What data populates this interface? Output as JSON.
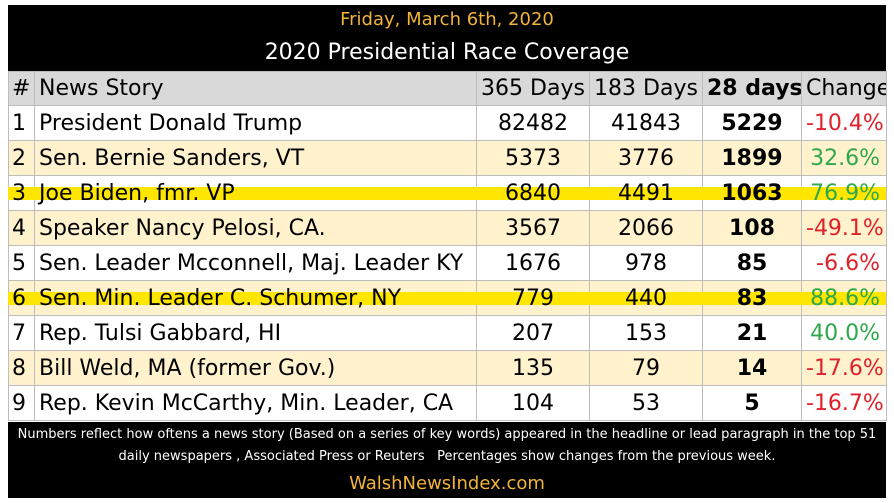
{
  "header": {
    "date": "Friday, March 6th, 2020",
    "title": "2020 Presidential Race Coverage"
  },
  "columns": [
    "#",
    "News Story",
    "365 Days",
    "183 Days",
    "28 days",
    "Change"
  ],
  "rows": [
    {
      "num": "1",
      "story": "President Donald Trump",
      "d365": "82482",
      "d183": "41843",
      "d28": "5229",
      "change": "-10.4%",
      "trend": "neg",
      "highlight": false
    },
    {
      "num": "2",
      "story": "Sen. Bernie Sanders, VT",
      "d365": "5373",
      "d183": "3776",
      "d28": "1899",
      "change": "32.6%",
      "trend": "pos",
      "highlight": false
    },
    {
      "num": "3",
      "story": "Joe Biden, fmr. VP",
      "d365": "6840",
      "d183": "4491",
      "d28": "1063",
      "change": "76.9%",
      "trend": "pos",
      "highlight": true
    },
    {
      "num": "4",
      "story": "Speaker Nancy Pelosi, CA.",
      "d365": "3567",
      "d183": "2066",
      "d28": "108",
      "change": "-49.1%",
      "trend": "neg",
      "highlight": false
    },
    {
      "num": "5",
      "story": "Sen. Leader Mcconnell, Maj. Leader KY",
      "d365": "1676",
      "d183": "978",
      "d28": "85",
      "change": "-6.6%",
      "trend": "neg",
      "highlight": false
    },
    {
      "num": "6",
      "story": "Sen. Min. Leader C. Schumer, NY",
      "d365": "779",
      "d183": "440",
      "d28": "83",
      "change": "88.6%",
      "trend": "pos",
      "highlight": true
    },
    {
      "num": "7",
      "story": "Rep. Tulsi Gabbard, HI",
      "d365": "207",
      "d183": "153",
      "d28": "21",
      "change": "40.0%",
      "trend": "pos",
      "highlight": false
    },
    {
      "num": "8",
      "story": "Bill Weld, MA (former Gov.)",
      "d365": "135",
      "d183": "79",
      "d28": "14",
      "change": "-17.6%",
      "trend": "neg",
      "highlight": false
    },
    {
      "num": "9",
      "story": "Rep. Kevin McCarthy, Min. Leader, CA",
      "d365": "104",
      "d183": "53",
      "d28": "5",
      "change": "-16.7%",
      "trend": "neg",
      "highlight": false
    }
  ],
  "footer": {
    "note_line1": "Numbers reflect how oftens a news story (Based on a series of key words) appeared in the headline or lead paragraph in the top 51",
    "note_line2": "daily newspapers , Associated Press or Reuters   Percentages show changes from the previous week.",
    "site": "WalshNewsIndex.com"
  },
  "colors": {
    "header_date": "#f2b33a",
    "positive": "#2ea84a",
    "negative": "#e0202a",
    "highlight": "#ffe600",
    "row_tint": "#fff2cc"
  }
}
